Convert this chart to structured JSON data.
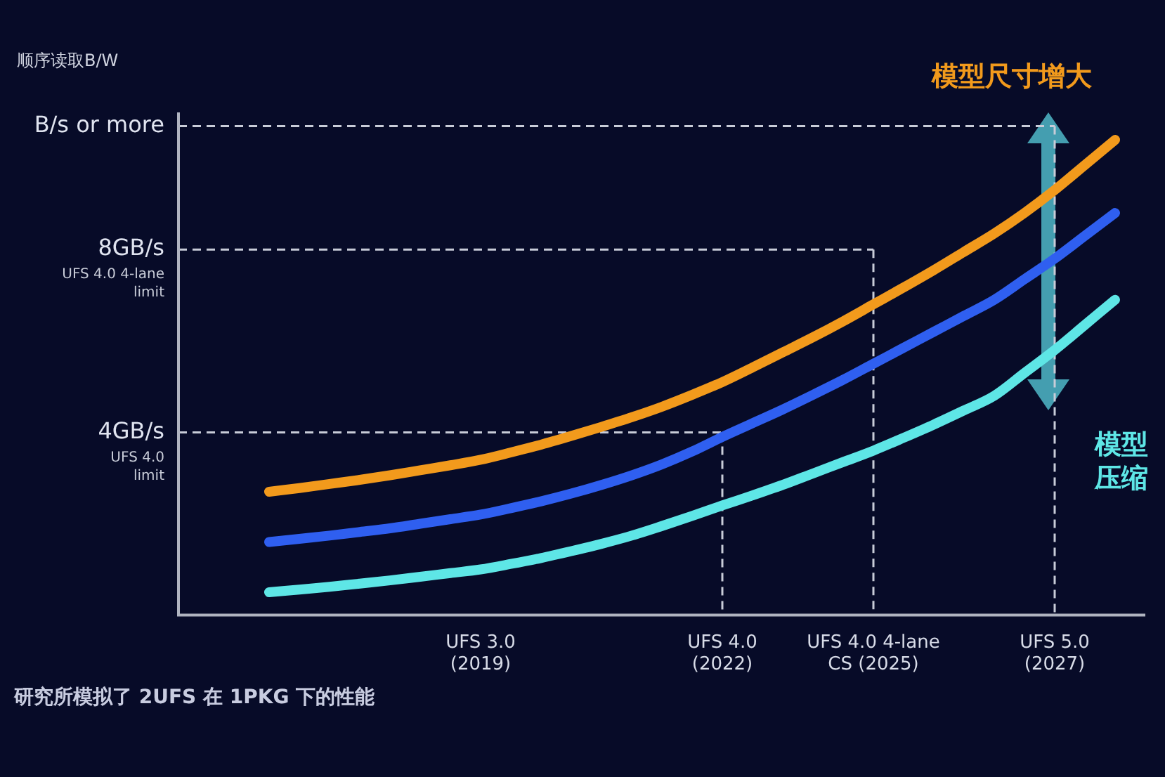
{
  "chart_data": {
    "type": "line",
    "ylabel": "顺序读取B/W",
    "categories": [
      null,
      null,
      null,
      null,
      null,
      null,
      null,
      null,
      null,
      null,
      "UFS 3.0\n(2019)",
      null,
      null,
      null,
      null,
      null,
      null,
      null,
      "UFS 4.0\n(2022)",
      null,
      null,
      null,
      null,
      "UFS 4.0 4-lane\nCS (2025)",
      null,
      null,
      null,
      null,
      null,
      "UFS 5.0\n(2027)",
      null,
      null,
      null
    ],
    "ylim": [
      0,
      11
    ],
    "yticks": [
      {
        "value": 4,
        "label": "4GB/s"
      },
      {
        "value": 8,
        "label": "8GB/s"
      },
      {
        "value": 10.7,
        "label": "B/s or more"
      }
    ],
    "series": [
      {
        "color": "#f29a1c",
        "values": [
          null,
          null,
          null,
          2.7,
          2.78,
          2.87,
          2.96,
          3.06,
          3.17,
          3.28,
          3.4,
          3.56,
          3.73,
          3.92,
          4.12,
          4.33,
          4.56,
          4.82,
          5.1,
          5.42,
          5.75,
          6.08,
          6.43,
          6.8,
          7.17,
          7.55,
          7.95,
          8.35,
          8.8,
          9.3,
          9.85,
          10.4,
          null
        ]
      },
      {
        "color": "#2f5ff0",
        "values": [
          null,
          null,
          null,
          1.6,
          1.67,
          1.74,
          1.82,
          1.9,
          2.0,
          2.1,
          2.2,
          2.34,
          2.49,
          2.66,
          2.85,
          3.06,
          3.3,
          3.58,
          3.9,
          4.2,
          4.5,
          4.82,
          5.15,
          5.5,
          5.85,
          6.2,
          6.55,
          6.9,
          7.35,
          7.8,
          8.3,
          8.8,
          null
        ]
      },
      {
        "color": "#5ee6e6",
        "values": [
          null,
          null,
          null,
          0.5,
          0.56,
          0.62,
          0.69,
          0.76,
          0.84,
          0.92,
          1.0,
          1.12,
          1.25,
          1.4,
          1.56,
          1.74,
          1.95,
          2.17,
          2.4,
          2.62,
          2.85,
          3.1,
          3.35,
          3.6,
          3.88,
          4.17,
          4.48,
          4.8,
          5.3,
          5.8,
          6.35,
          6.9,
          null
        ]
      }
    ],
    "ref_lines": [
      {
        "axis": "y",
        "value": 4,
        "line_style": "dashed"
      },
      {
        "axis": "y",
        "value": 8,
        "line_style": "dashed"
      },
      {
        "axis": "y",
        "value": 10.7,
        "line_style": "dashed"
      },
      {
        "axis": "x",
        "value": "UFS 4.0\n(2022)",
        "line_style": "dashed"
      },
      {
        "axis": "x",
        "value": "UFS 4.0 4-lane\nCS (2025)",
        "line_style": "dashed"
      },
      {
        "axis": "x",
        "value": "UFS 5.0\n(2027)",
        "line_style": "dashed"
      }
    ],
    "annotations": [
      "模型尺寸增大",
      "模型压缩",
      "研究所模拟了 2UFS 在 1PKG 下的性能",
      "UFS 4.0\nlimit",
      "UFS 4.0 4-lane\nlimit"
    ],
    "grid": false,
    "legend": false,
    "marker": "none",
    "line_style": "solid"
  }
}
